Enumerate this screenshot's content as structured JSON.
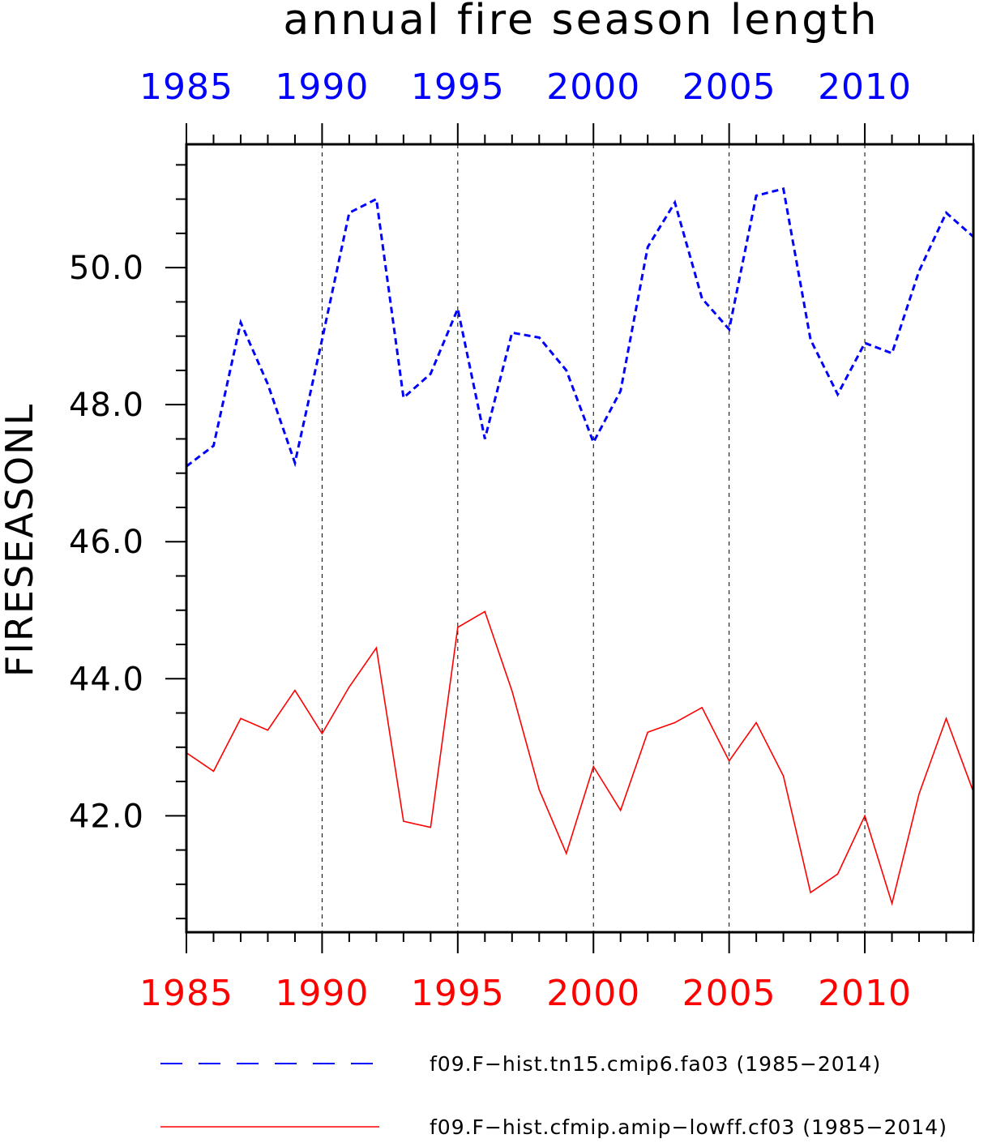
{
  "chart_data": {
    "type": "line",
    "title": "annual fire season length",
    "ylabel": "FIRESEASONL",
    "xlim": [
      1985,
      2014
    ],
    "ylim": [
      40.3,
      51.8
    ],
    "yticks": [
      42.0,
      44.0,
      46.0,
      48.0,
      50.0
    ],
    "ytick_labels": [
      "42.0",
      "44.0",
      "46.0",
      "48.0",
      "50.0"
    ],
    "xticks": [
      1985,
      1990,
      1995,
      2000,
      2005,
      2010
    ],
    "xtick_labels": [
      "1985",
      "1990",
      "1995",
      "2000",
      "2005",
      "2010"
    ],
    "top_axis_color": "#0000ff",
    "bottom_axis_color": "#ff0000",
    "vertical_gridlines": true,
    "legend_position": "bottom",
    "x": [
      1985,
      1986,
      1987,
      1988,
      1989,
      1990,
      1991,
      1992,
      1993,
      1994,
      1995,
      1996,
      1997,
      1998,
      1999,
      2000,
      2001,
      2002,
      2003,
      2004,
      2005,
      2006,
      2007,
      2008,
      2009,
      2010,
      2011,
      2012,
      2013,
      2014
    ],
    "series": [
      {
        "name": "f09.F−hist.tn15.cmip6.fa03 (1985−2014)",
        "color": "#0000ff",
        "dash": "dashed",
        "values": [
          47.1,
          47.4,
          49.2,
          48.3,
          47.15,
          48.95,
          50.8,
          51.0,
          48.1,
          48.45,
          49.4,
          47.5,
          49.05,
          48.98,
          48.5,
          47.45,
          48.2,
          50.3,
          50.95,
          49.55,
          49.1,
          51.05,
          51.15,
          48.95,
          48.15,
          48.9,
          48.75,
          49.95,
          50.8,
          50.45
        ]
      },
      {
        "name": "f09.F−hist.cfmip.amip−lowff.cf03 (1985−2014)",
        "color": "#ff0000",
        "dash": "solid",
        "values": [
          42.92,
          42.65,
          43.42,
          43.25,
          43.83,
          43.2,
          43.88,
          44.45,
          41.92,
          41.83,
          44.75,
          44.98,
          43.82,
          42.38,
          41.45,
          42.72,
          42.08,
          43.22,
          43.36,
          43.58,
          42.8,
          43.36,
          42.58,
          40.88,
          41.15,
          42.0,
          40.72,
          42.32,
          43.42,
          42.35
        ]
      }
    ]
  }
}
